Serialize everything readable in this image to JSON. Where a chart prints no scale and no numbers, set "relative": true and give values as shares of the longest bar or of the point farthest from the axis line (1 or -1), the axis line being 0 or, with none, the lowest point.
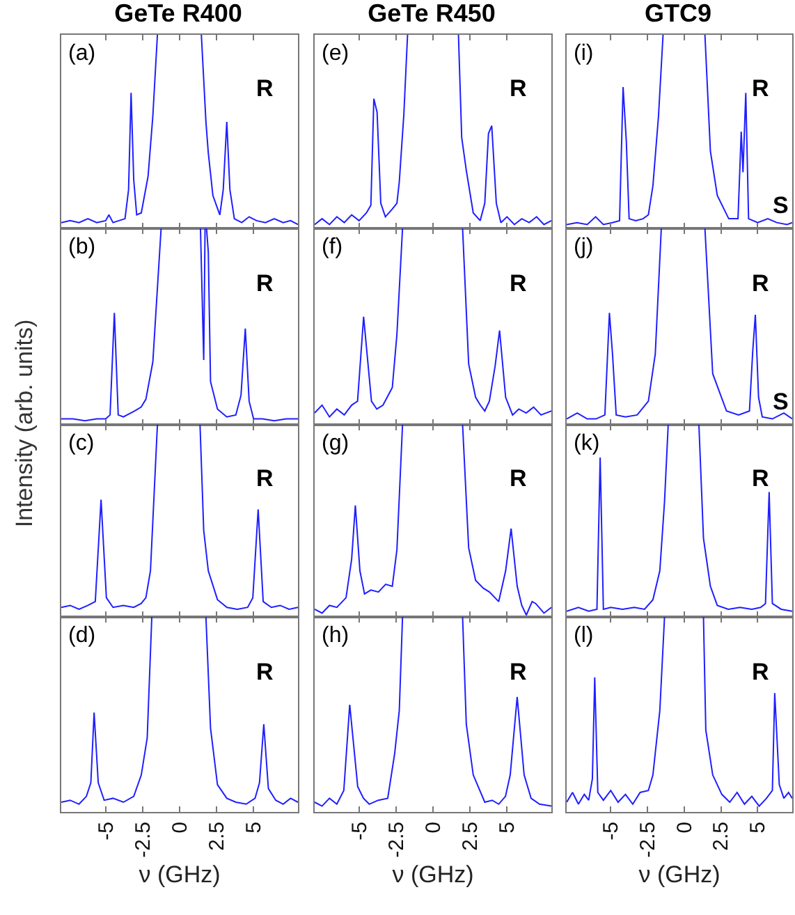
{
  "chart_data": [
    {
      "type": "line",
      "relative": true,
      "title": "GeTe R400",
      "ylabel": "Intensity (arb. units)",
      "color": "#1f1fff",
      "xlim": [
        -8,
        8
      ],
      "xticks": [
        -5,
        -2.5,
        0,
        2.5,
        5
      ],
      "tick_labels": false,
      "x": [
        -8,
        -7.4,
        -6.8,
        -6.2,
        -5.6,
        -5.0,
        -4.78,
        -4.5,
        -4.1,
        -3.69,
        -3.45,
        -3.28,
        -3.1,
        -2.9,
        -2.59,
        -2.13,
        -1.81,
        -1.5,
        0,
        1.47,
        1.78,
        1.94,
        2.25,
        2.72,
        2.95,
        3.19,
        3.4,
        3.7,
        4.2,
        4.7,
        5.2,
        5.8,
        6.4,
        7.0,
        7.5,
        8
      ],
      "values": [
        0.03,
        0.04,
        0.03,
        0.05,
        0.03,
        0.04,
        0.07,
        0.03,
        0.04,
        0.05,
        0.2,
        0.7,
        0.25,
        0.07,
        0.08,
        0.27,
        0.58,
        1,
        null,
        1,
        0.55,
        0.39,
        0.17,
        0.07,
        0.2,
        0.55,
        0.2,
        0.05,
        0.03,
        0.06,
        0.04,
        0.03,
        0.05,
        0.03,
        0.04,
        0.02
      ],
      "annotations": [
        "(a)",
        "R"
      ]
    },
    {
      "type": "line",
      "relative": true,
      "color": "#1f1fff",
      "xlim": [
        -8,
        8
      ],
      "xticks": [
        -5,
        -2.5,
        0,
        2.5,
        5
      ],
      "tick_labels": false,
      "x": [
        -8,
        -7.2,
        -6.4,
        -5.6,
        -5.0,
        -4.7,
        -4.41,
        -4.15,
        -3.8,
        -3.06,
        -2.6,
        -2.28,
        -1.81,
        -1.25,
        0,
        1.41,
        1.63,
        1.72,
        1.76,
        1.82,
        1.94,
        2.09,
        2.56,
        3.19,
        3.8,
        4.15,
        4.44,
        4.7,
        5.0,
        5.6,
        6.4,
        7.2,
        8
      ],
      "values": [
        0.03,
        0.03,
        0.02,
        0.03,
        0.03,
        0.05,
        0.57,
        0.05,
        0.04,
        0.07,
        0.09,
        0.13,
        0.32,
        1,
        null,
        1,
        0.33,
        1,
        null,
        1,
        0.88,
        0.22,
        0.08,
        0.04,
        0.05,
        0.15,
        0.49,
        0.12,
        0.03,
        0.03,
        0.02,
        0.03,
        0.03
      ],
      "annotations": [
        "(b)",
        "R"
      ]
    },
    {
      "type": "line",
      "relative": true,
      "color": "#1f1fff",
      "xlim": [
        -8,
        8
      ],
      "xticks": [
        -5,
        -2.5,
        0,
        2.5,
        5
      ],
      "tick_labels": false,
      "x": [
        -8,
        -7.4,
        -6.8,
        -6.2,
        -5.7,
        -5.31,
        -4.95,
        -4.5,
        -3.8,
        -3.1,
        -2.6,
        -2.28,
        -1.97,
        -1.5,
        0,
        1.38,
        1.63,
        1.94,
        2.56,
        3.2,
        3.9,
        4.6,
        4.95,
        5.31,
        5.65,
        6.2,
        6.8,
        7.4,
        8
      ],
      "values": [
        0.05,
        0.06,
        0.04,
        0.06,
        0.08,
        0.61,
        0.1,
        0.05,
        0.06,
        0.05,
        0.07,
        0.1,
        0.24,
        1,
        null,
        1,
        0.45,
        0.24,
        0.09,
        0.05,
        0.04,
        0.05,
        0.1,
        0.56,
        0.08,
        0.05,
        0.06,
        0.04,
        0.05
      ],
      "annotations": [
        "(c)",
        "R"
      ]
    },
    {
      "type": "line",
      "relative": true,
      "xlabel": "ν (GHz)",
      "color": "#1f1fff",
      "xlim": [
        -8,
        8
      ],
      "xticks": [
        -5,
        -2.5,
        0,
        2.5,
        5
      ],
      "tick_labels": "x",
      "x": [
        -8,
        -7.4,
        -6.8,
        -6.3,
        -6.0,
        -5.78,
        -5.5,
        -5.1,
        -4.5,
        -3.8,
        -3.1,
        -2.59,
        -2.19,
        -1.88,
        0,
        1.78,
        2.09,
        2.56,
        3.19,
        3.8,
        4.5,
        5.1,
        5.4,
        5.69,
        6.0,
        6.5,
        7.0,
        7.5,
        8
      ],
      "values": [
        0.05,
        0.06,
        0.04,
        0.08,
        0.15,
        0.51,
        0.15,
        0.06,
        0.07,
        0.05,
        0.08,
        0.19,
        0.38,
        1,
        null,
        1,
        0.43,
        0.14,
        0.07,
        0.05,
        0.04,
        0.07,
        0.15,
        0.45,
        0.12,
        0.06,
        0.04,
        0.07,
        0.05
      ],
      "annotations": [
        "(d)",
        "R"
      ]
    },
    {
      "type": "line",
      "relative": true,
      "title": "GeTe R450",
      "color": "#1f1fff",
      "xlim": [
        -8,
        8
      ],
      "xticks": [
        -5,
        -2.5,
        0,
        2.5,
        5
      ],
      "tick_labels": false,
      "x": [
        -8,
        -7.5,
        -7.0,
        -6.5,
        -6.0,
        -5.5,
        -5.0,
        -4.5,
        -4.2,
        -4.0,
        -3.78,
        -3.53,
        -3.22,
        -2.75,
        -2.44,
        -2.28,
        -1.97,
        -1.72,
        0,
        1.72,
        1.94,
        2.25,
        2.72,
        3.19,
        3.5,
        3.75,
        3.97,
        4.28,
        4.59,
        5.0,
        5.5,
        6.0,
        6.5,
        7.0,
        7.5,
        8
      ],
      "values": [
        0.02,
        0.05,
        0.02,
        0.06,
        0.03,
        0.07,
        0.04,
        0.08,
        0.12,
        0.67,
        0.6,
        0.13,
        0.06,
        0.1,
        0.13,
        0.24,
        0.59,
        1,
        null,
        1,
        0.47,
        0.3,
        0.08,
        0.04,
        0.13,
        0.49,
        0.53,
        0.13,
        0.03,
        0.06,
        0.02,
        0.05,
        0.03,
        0.06,
        0.02,
        0.04
      ],
      "annotations": [
        "(e)",
        "R"
      ]
    },
    {
      "type": "line",
      "relative": true,
      "color": "#1f1fff",
      "xlim": [
        -8,
        8
      ],
      "xticks": [
        -5,
        -2.5,
        0,
        2.5,
        5
      ],
      "tick_labels": false,
      "x": [
        -8,
        -7.5,
        -7.0,
        -6.5,
        -6.0,
        -5.5,
        -5.1,
        -4.69,
        -4.16,
        -3.8,
        -3.38,
        -2.75,
        -2.44,
        -2.06,
        0,
        2.0,
        2.41,
        2.88,
        3.2,
        3.5,
        3.81,
        4.2,
        4.5,
        4.91,
        5.38,
        5.8,
        6.3,
        6.8,
        7.3,
        8
      ],
      "values": [
        0.06,
        0.1,
        0.04,
        0.08,
        0.05,
        0.1,
        0.12,
        0.55,
        0.12,
        0.08,
        0.1,
        0.19,
        0.46,
        1,
        null,
        1,
        0.31,
        0.14,
        0.1,
        0.07,
        0.12,
        0.3,
        0.48,
        0.14,
        0.05,
        0.08,
        0.06,
        0.09,
        0.05,
        0.07
      ],
      "annotations": [
        "(f)",
        "R"
      ]
    },
    {
      "type": "line",
      "relative": true,
      "color": "#1f1fff",
      "xlim": [
        -8,
        8
      ],
      "xticks": [
        -5,
        -2.5,
        0,
        2.5,
        5
      ],
      "tick_labels": false,
      "x": [
        -8,
        -7.5,
        -7.0,
        -6.5,
        -5.88,
        -5.5,
        -5.25,
        -4.94,
        -4.63,
        -4.2,
        -3.69,
        -3.2,
        -2.75,
        -2.44,
        -2.06,
        0,
        2.0,
        2.41,
        2.88,
        3.4,
        3.81,
        4.44,
        4.91,
        5.28,
        5.69,
        6.0,
        6.31,
        6.7,
        6.94,
        7.5,
        8
      ],
      "values": [
        0.04,
        0.02,
        0.06,
        0.05,
        0.1,
        0.3,
        0.58,
        0.24,
        0.12,
        0.14,
        0.13,
        0.17,
        0.16,
        0.35,
        1,
        null,
        1,
        0.36,
        0.19,
        0.15,
        0.13,
        0.08,
        0.24,
        0.46,
        0.16,
        0.06,
        0.01,
        0.08,
        0.07,
        0.02,
        0.05
      ],
      "annotations": [
        "(g)",
        "R"
      ]
    },
    {
      "type": "line",
      "relative": true,
      "xlabel": "ν (GHz)",
      "color": "#1f1fff",
      "xlim": [
        -8,
        8
      ],
      "xticks": [
        -5,
        -2.5,
        0,
        2.5,
        5
      ],
      "tick_labels": "x",
      "x": [
        -8,
        -7.5,
        -7.0,
        -6.5,
        -6.03,
        -5.63,
        -5.09,
        -4.7,
        -4.31,
        -3.7,
        -3.06,
        -2.59,
        -2.28,
        -2.06,
        0,
        2.0,
        2.25,
        2.72,
        3.5,
        4.0,
        4.44,
        4.9,
        5.22,
        5.69,
        6.16,
        6.63,
        7.2,
        8
      ],
      "values": [
        0.05,
        0.03,
        0.07,
        0.04,
        0.11,
        0.55,
        0.13,
        0.07,
        0.04,
        0.06,
        0.07,
        0.3,
        0.52,
        1,
        null,
        1,
        0.45,
        0.19,
        0.05,
        0.06,
        0.04,
        0.08,
        0.19,
        0.59,
        0.19,
        0.07,
        0.04,
        0.03
      ],
      "annotations": [
        "(h)",
        "R"
      ]
    },
    {
      "type": "line",
      "relative": true,
      "title": "GTC9",
      "color": "#1f1fff",
      "xlim": [
        -8,
        7.35
      ],
      "xticks": [
        -5,
        -2.5,
        0,
        2.5,
        5
      ],
      "tick_labels": false,
      "x": [
        -8,
        -7.3,
        -6.6,
        -6.03,
        -5.5,
        -4.9,
        -4.4,
        -4.16,
        -3.94,
        -3.75,
        -3.3,
        -2.8,
        -2.44,
        -2.13,
        -1.75,
        -1.44,
        0,
        1.41,
        1.78,
        2.25,
        3.03,
        3.66,
        3.88,
        4.0,
        4.19,
        4.38,
        5.0,
        5.69,
        6.3,
        7.0,
        7.35
      ],
      "values": [
        0.02,
        0.03,
        0.02,
        0.06,
        0.02,
        0.03,
        0.04,
        0.73,
        0.45,
        0.05,
        0.04,
        0.05,
        0.07,
        0.22,
        0.58,
        1,
        null,
        1,
        0.4,
        0.17,
        0.05,
        0.05,
        0.5,
        0.29,
        0.7,
        0.05,
        0.03,
        0.05,
        0.03,
        0.02,
        0.03
      ],
      "annotations": [
        "(i)",
        "R",
        "S"
      ]
    },
    {
      "type": "line",
      "relative": true,
      "color": "#1f1fff",
      "xlim": [
        -8,
        7.35
      ],
      "xticks": [
        -5,
        -2.5,
        0,
        2.5,
        5
      ],
      "tick_labels": false,
      "x": [
        -8,
        -7.28,
        -6.6,
        -6.0,
        -5.4,
        -5.09,
        -4.88,
        -4.63,
        -4.0,
        -3.2,
        -2.44,
        -1.97,
        -1.56,
        0,
        1.41,
        1.94,
        2.88,
        3.7,
        4.44,
        4.66,
        4.84,
        5.06,
        5.31,
        6.0,
        6.78,
        7.35
      ],
      "values": [
        0.03,
        0.06,
        0.03,
        0.03,
        0.05,
        0.57,
        0.36,
        0.05,
        0.04,
        0.05,
        0.12,
        0.36,
        1,
        null,
        1,
        0.26,
        0.07,
        0.05,
        0.07,
        0.37,
        0.56,
        0.14,
        0.04,
        0.03,
        0.06,
        0.03
      ],
      "annotations": [
        "(j)",
        "R",
        "S"
      ]
    },
    {
      "type": "line",
      "relative": true,
      "color": "#1f1fff",
      "xlim": [
        -8,
        7.35
      ],
      "xticks": [
        -5,
        -2.5,
        0,
        2.5,
        5
      ],
      "tick_labels": false,
      "x": [
        -8,
        -7.2,
        -6.5,
        -5.94,
        -5.72,
        -5.5,
        -5.0,
        -4.2,
        -3.4,
        -2.7,
        -2.13,
        -1.66,
        -1.34,
        -1.09,
        0,
        1.0,
        1.31,
        1.78,
        2.25,
        3.0,
        3.8,
        4.6,
        5.2,
        5.53,
        5.78,
        6.0,
        6.6,
        7.35
      ],
      "values": [
        0.03,
        0.05,
        0.03,
        0.04,
        0.83,
        0.04,
        0.05,
        0.04,
        0.05,
        0.04,
        0.09,
        0.24,
        0.6,
        1,
        null,
        1,
        0.41,
        0.16,
        0.06,
        0.04,
        0.05,
        0.04,
        0.05,
        0.07,
        0.65,
        0.07,
        0.04,
        0.03
      ],
      "annotations": [
        "(k)",
        "R"
      ]
    },
    {
      "type": "line",
      "relative": true,
      "xlabel": "ν (GHz)",
      "color": "#1f1fff",
      "xlim": [
        -8,
        7.35
      ],
      "xticks": [
        -5,
        -2.5,
        0,
        2.5,
        5
      ],
      "tick_labels": "x",
      "x": [
        -8,
        -7.6,
        -7.2,
        -6.8,
        -6.5,
        -6.25,
        -6.09,
        -5.88,
        -5.5,
        -5.0,
        -4.5,
        -4.0,
        -3.5,
        -3.0,
        -2.44,
        -2.13,
        -1.66,
        -1.34,
        0,
        1.31,
        1.47,
        1.94,
        2.56,
        3.1,
        3.6,
        4.1,
        4.6,
        5.1,
        5.6,
        6.0,
        6.16,
        6.47,
        6.78,
        7.1,
        7.35
      ],
      "values": [
        0.05,
        0.1,
        0.04,
        0.09,
        0.06,
        0.17,
        0.69,
        0.1,
        0.06,
        0.11,
        0.05,
        0.09,
        0.04,
        0.1,
        0.11,
        0.19,
        0.52,
        1,
        null,
        1,
        0.42,
        0.19,
        0.09,
        0.05,
        0.1,
        0.04,
        0.08,
        0.03,
        0.07,
        0.11,
        0.61,
        0.14,
        0.07,
        0.1,
        0.07
      ],
      "annotations": [
        "(l)",
        "R"
      ]
    }
  ]
}
